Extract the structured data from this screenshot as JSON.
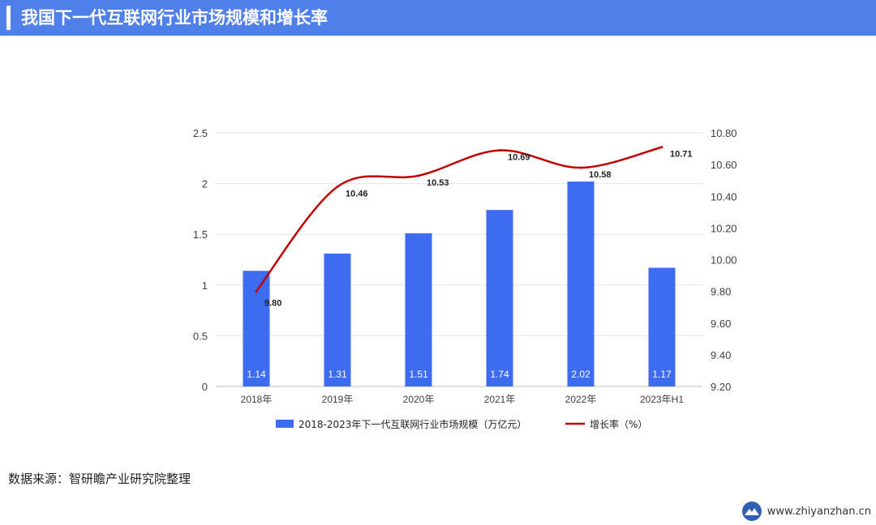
{
  "header": {
    "title": "我国下一代互联网行业市场规模和增长率"
  },
  "chart_data": {
    "type": "bar+line",
    "categories": [
      "2018年",
      "2019年",
      "2020年",
      "2021年",
      "2022年",
      "2023年H1"
    ],
    "series": [
      {
        "name": "2018-2023年下一代互联网行业市场规模（万亿元）",
        "type": "bar",
        "axis": "left",
        "values": [
          1.14,
          1.31,
          1.51,
          1.74,
          2.02,
          1.17
        ],
        "labels": [
          "1.14",
          "1.31",
          "1.51",
          "1.74",
          "2.02",
          "1.17"
        ],
        "color": "#3d6cf0"
      },
      {
        "name": "增长率（%）",
        "type": "line",
        "axis": "right",
        "values": [
          9.8,
          10.46,
          10.53,
          10.69,
          10.58,
          10.71
        ],
        "labels": [
          "9.80",
          "10.46",
          "10.53",
          "10.69",
          "10.58",
          "10.71"
        ],
        "color": "#c00000"
      }
    ],
    "y_left": {
      "min": 0,
      "max": 2.5,
      "ticks": [
        "0",
        "0.5",
        "1",
        "1.5",
        "2",
        "2.5"
      ]
    },
    "y_right": {
      "min": 9.2,
      "max": 10.8,
      "ticks": [
        "9.20",
        "9.40",
        "9.60",
        "9.80",
        "10.00",
        "10.20",
        "10.40",
        "10.60",
        "10.80"
      ]
    },
    "grid": true,
    "legend_position": "bottom"
  },
  "source": {
    "text": "数据来源：智研瞻产业研究院整理"
  },
  "brand": {
    "url": "www.zhiyanzhan.cn",
    "logo": "mountain-logo-icon"
  }
}
